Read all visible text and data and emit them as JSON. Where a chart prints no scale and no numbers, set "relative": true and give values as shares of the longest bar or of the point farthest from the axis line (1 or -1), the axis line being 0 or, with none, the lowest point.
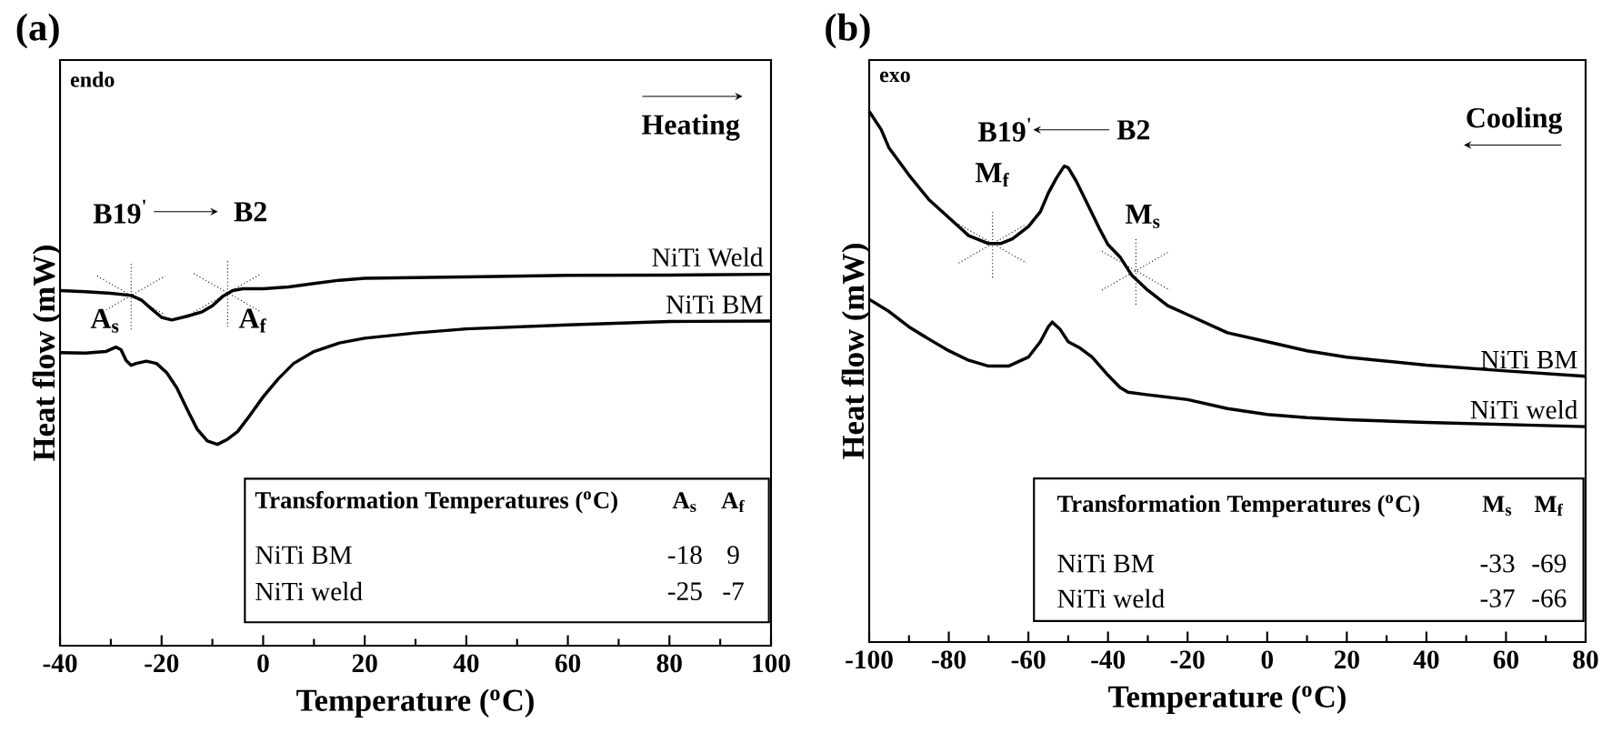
{
  "chart_data": [
    {
      "type": "line",
      "title": "(a)",
      "xlabel": "Temperature ($^{o}$C)",
      "ylabel": "Heat flow (mW)",
      "relative": true,
      "legend": false,
      "grid": false,
      "xlim": [
        -40,
        100
      ],
      "xticks": [
        -40,
        -20,
        0,
        20,
        40,
        60,
        80,
        100
      ],
      "series": [
        {
          "name": "NiTi Weld",
          "color": "#000000",
          "x": [
            -40,
            -35,
            -30,
            -26,
            -24,
            -22,
            -20,
            -18,
            -15,
            -12,
            -10,
            -8,
            -6,
            -4,
            0,
            5,
            10,
            15,
            20,
            40,
            60,
            80,
            100
          ],
          "values": [
            0.956,
            0.953,
            0.949,
            0.943,
            0.931,
            0.907,
            0.884,
            0.877,
            0.887,
            0.899,
            0.915,
            0.94,
            0.956,
            0.961,
            0.961,
            0.966,
            0.975,
            0.984,
            0.989,
            0.993,
            0.997,
            0.998,
            1
          ]
        },
        {
          "name": "NiTi BM",
          "color": "#000000",
          "x": [
            -40,
            -35,
            -31,
            -29,
            -28,
            -27,
            -26,
            -25,
            -23,
            -21,
            -19,
            -17,
            -15,
            -13,
            -11,
            -9,
            -7,
            -5,
            -3,
            0,
            3,
            6,
            10,
            15,
            20,
            30,
            40,
            60,
            80,
            100
          ],
          "values": [
            0.789,
            0.788,
            0.792,
            0.804,
            0.797,
            0.768,
            0.755,
            0.76,
            0.766,
            0.76,
            0.735,
            0.694,
            0.637,
            0.583,
            0.551,
            0.542,
            0.556,
            0.577,
            0.613,
            0.67,
            0.719,
            0.76,
            0.792,
            0.815,
            0.828,
            0.842,
            0.853,
            0.864,
            0.873,
            0.874
          ]
        }
      ],
      "annotations": [
        "endo",
        "Heating",
        "B19$^{'}$",
        "B2",
        {
          "text": "A$_{s}$",
          "x": -26,
          "y": 0.943
        },
        {
          "text": "A$_{f}$",
          "x": -7,
          "y": 0.95
        },
        "Transformation Temperatures ($^{o}$C)",
        "A$_{s}$",
        "A$_{f}$",
        "NiTi BM",
        "-18",
        "9",
        "NiTi weld",
        "-25",
        "-7"
      ]
    },
    {
      "type": "line",
      "title": "(b)",
      "xlabel": "Temperature ($^{o}$C)",
      "ylabel": "Heat flow (mW)",
      "relative": true,
      "legend": false,
      "grid": false,
      "xlim": [
        -100,
        80
      ],
      "xticks": [
        -100,
        -80,
        -60,
        -40,
        -20,
        0,
        20,
        40,
        60,
        80
      ],
      "series": [
        {
          "name": "NiTi BM",
          "color": "#000000",
          "x": [
            -100,
            -97,
            -95,
            -90,
            -85,
            -80,
            -75,
            -70,
            -67,
            -64,
            -60,
            -57,
            -55,
            -53,
            -51,
            -50,
            -48,
            -45,
            -42,
            -40,
            -37,
            -34,
            -30,
            -25,
            -20,
            -10,
            0,
            10,
            20,
            40,
            60,
            80
          ],
          "values": [
            1.0,
            0.966,
            0.931,
            0.88,
            0.834,
            0.8,
            0.766,
            0.751,
            0.751,
            0.76,
            0.783,
            0.811,
            0.846,
            0.874,
            0.897,
            0.894,
            0.869,
            0.823,
            0.777,
            0.749,
            0.726,
            0.691,
            0.663,
            0.634,
            0.617,
            0.583,
            0.566,
            0.549,
            0.537,
            0.522,
            0.511,
            0.501
          ]
        },
        {
          "name": "NiTi weld",
          "color": "#000000",
          "x": [
            -100,
            -95,
            -90,
            -85,
            -80,
            -75,
            -70,
            -65,
            -60,
            -57,
            -55,
            -54,
            -52,
            -50,
            -47,
            -44,
            -40,
            -37,
            -35,
            -30,
            -20,
            -10,
            0,
            10,
            20,
            40,
            60,
            80
          ],
          "values": [
            0.646,
            0.623,
            0.594,
            0.571,
            0.549,
            0.531,
            0.52,
            0.52,
            0.537,
            0.566,
            0.594,
            0.603,
            0.589,
            0.566,
            0.554,
            0.537,
            0.503,
            0.48,
            0.471,
            0.466,
            0.457,
            0.44,
            0.429,
            0.423,
            0.419,
            0.414,
            0.41,
            0.406
          ]
        }
      ],
      "annotations": [
        "exo",
        "Cooling",
        "B19$^{'}$",
        "B2",
        {
          "text": "M$_{f}$",
          "x": -69,
          "y": 0.751
        },
        {
          "text": "M$_{s}$",
          "x": -33,
          "y": 0.7
        },
        "Transformation Temperatures ($^{o}$C)",
        "M$_{s}$",
        "M$_{f}$",
        "NiTi BM",
        "-33",
        "-69",
        "NiTi weld",
        "-37",
        "-66"
      ]
    }
  ]
}
